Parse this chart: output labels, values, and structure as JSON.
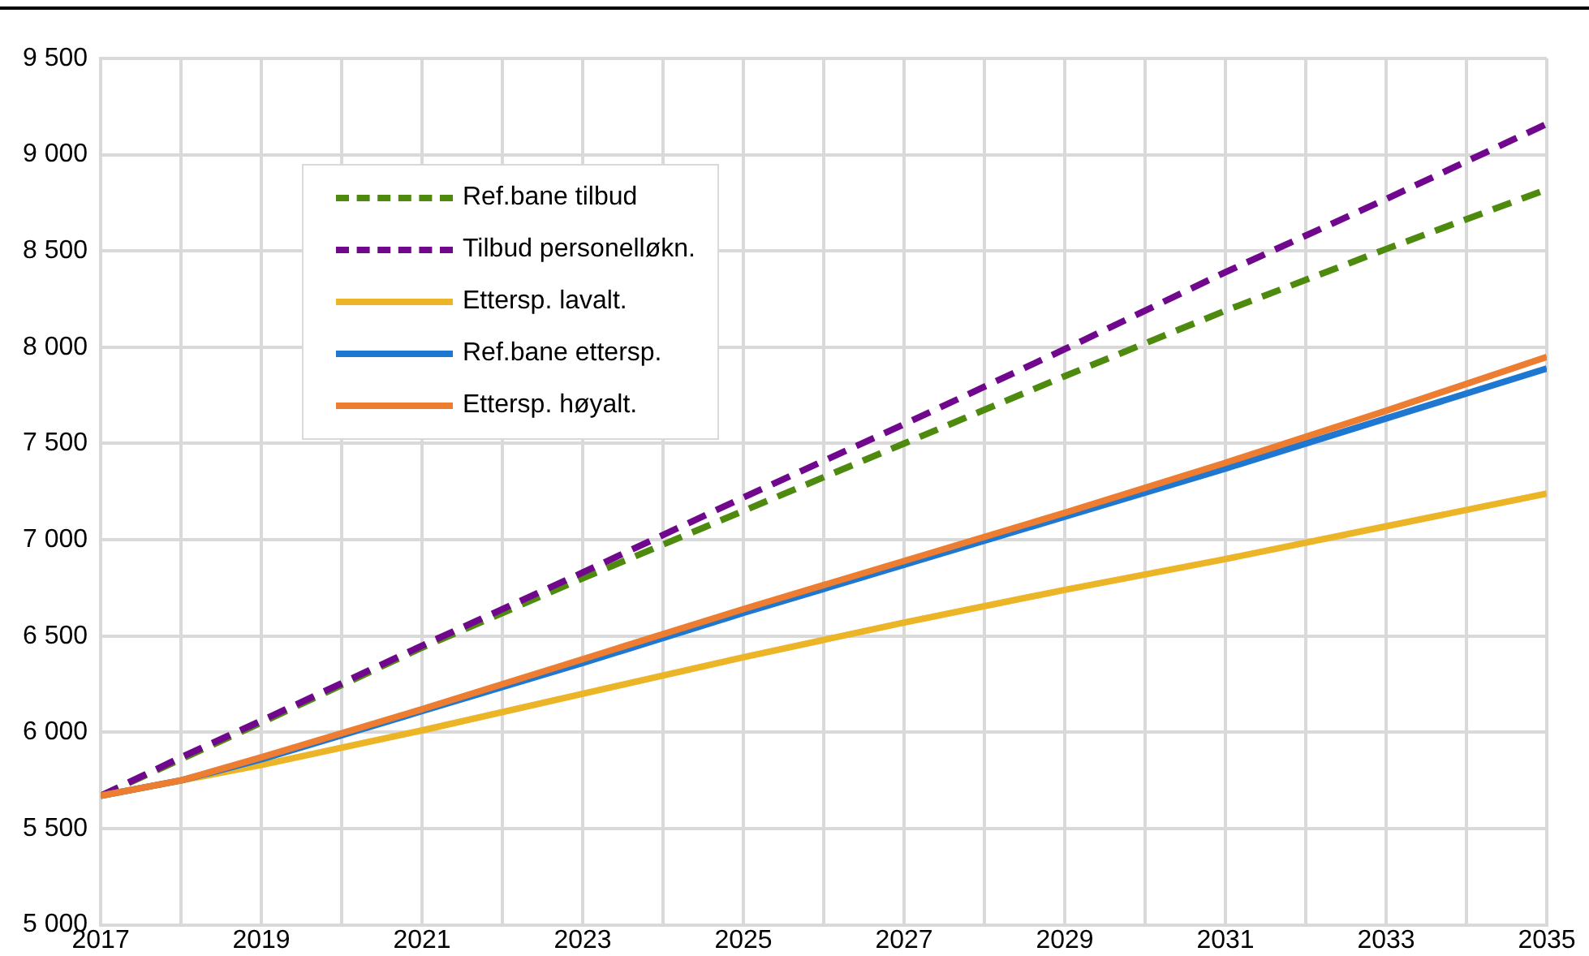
{
  "chart_data": {
    "type": "line",
    "x": [
      2017,
      2018,
      2019,
      2021,
      2023,
      2025,
      2027,
      2029,
      2031,
      2033,
      2035
    ],
    "series": [
      {
        "name": "Ref.bane tilbud",
        "color": "#4e8a0e",
        "line_style": "dashed",
        "values": [
          5670,
          5860,
          6050,
          6440,
          6800,
          7150,
          7500,
          7850,
          8190,
          8510,
          8820
        ]
      },
      {
        "name": "Tilbud personelløkn.",
        "color": "#70078c",
        "line_style": "dashed",
        "values": [
          5670,
          5870,
          6060,
          6450,
          6830,
          7220,
          7600,
          7990,
          8390,
          8770,
          9160
        ]
      },
      {
        "name": "Ettersp. lavalt.",
        "color": "#ebb527",
        "line_style": "solid",
        "values": [
          5670,
          5750,
          5830,
          6010,
          6200,
          6390,
          6570,
          6740,
          6900,
          7070,
          7240
        ]
      },
      {
        "name": "Ref.bane ettersp.",
        "color": "#1e78d2",
        "line_style": "solid",
        "values": [
          5670,
          5750,
          5860,
          6110,
          6360,
          6620,
          6870,
          7120,
          7370,
          7630,
          7890
        ]
      },
      {
        "name": "Ettersp. høyalt.",
        "color": "#ed7d31",
        "line_style": "solid",
        "values": [
          5670,
          5750,
          5870,
          6120,
          6380,
          6640,
          6890,
          7140,
          7400,
          7670,
          7950
        ]
      }
    ],
    "xlim": [
      2017,
      2035
    ],
    "xticks": [
      2017,
      {
        "value": 2018,
        "label": null
      },
      2019,
      {
        "value": 2020,
        "label": null
      },
      2021,
      {
        "value": 2022,
        "label": null
      },
      2023,
      {
        "value": 2024,
        "label": null
      },
      2025,
      {
        "value": 2026,
        "label": null
      },
      2027,
      {
        "value": 2028,
        "label": null
      },
      2029,
      {
        "value": 2030,
        "label": null
      },
      2031,
      {
        "value": 2032,
        "label": null
      },
      2033,
      {
        "value": 2034,
        "label": null
      },
      2035
    ],
    "ylim": [
      5000,
      9500
    ],
    "yticks": [
      {
        "value": 5000,
        "label": "5 000"
      },
      {
        "value": 5500,
        "label": "5 500"
      },
      {
        "value": 6000,
        "label": "6 000"
      },
      {
        "value": 6500,
        "label": "6 500"
      },
      {
        "value": 7000,
        "label": "7 000"
      },
      {
        "value": 7500,
        "label": "7 500"
      },
      {
        "value": 8000,
        "label": "8 000"
      },
      {
        "value": 8500,
        "label": "8 500"
      },
      {
        "value": 9000,
        "label": "9 000"
      },
      {
        "value": 9500,
        "label": "9 500"
      }
    ],
    "grid": true,
    "legend": "top left",
    "marker": "none"
  }
}
